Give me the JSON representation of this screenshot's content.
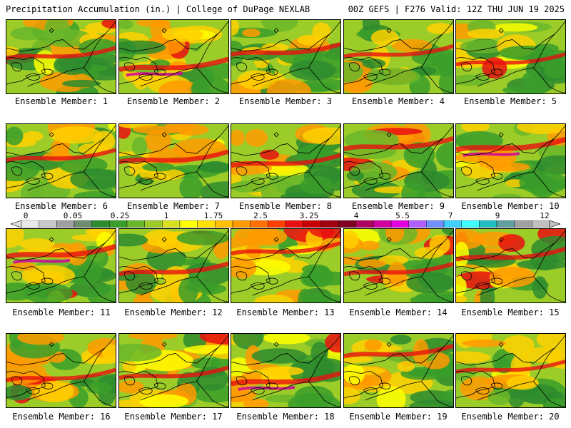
{
  "header": {
    "left": "Precipitation Accumulation (in.) | College of DuPage NEXLAB",
    "right": "00Z GEFS | F276 Valid: 12Z THU JUN 19 2025"
  },
  "members": [
    {
      "label": "Ensemble Member: 1",
      "wet": 0.45
    },
    {
      "label": "Ensemble Member: 2",
      "wet": 0.65
    },
    {
      "label": "Ensemble Member: 3",
      "wet": 0.55
    },
    {
      "label": "Ensemble Member: 4",
      "wet": 0.45
    },
    {
      "label": "Ensemble Member: 5",
      "wet": 0.4
    },
    {
      "label": "Ensemble Member: 6",
      "wet": 0.45
    },
    {
      "label": "Ensemble Member: 7",
      "wet": 0.6
    },
    {
      "label": "Ensemble Member: 8",
      "wet": 0.55
    },
    {
      "label": "Ensemble Member: 9",
      "wet": 0.6
    },
    {
      "label": "Ensemble Member: 10",
      "wet": 0.75
    },
    {
      "label": "Ensemble Member: 11",
      "wet": 0.7
    },
    {
      "label": "Ensemble Member: 12",
      "wet": 0.55
    },
    {
      "label": "Ensemble Member: 13",
      "wet": 0.45
    },
    {
      "label": "Ensemble Member: 14",
      "wet": 0.5
    },
    {
      "label": "Ensemble Member: 15",
      "wet": 0.55
    },
    {
      "label": "Ensemble Member: 16",
      "wet": 0.45
    },
    {
      "label": "Ensemble Member: 17",
      "wet": 0.5
    },
    {
      "label": "Ensemble Member: 18",
      "wet": 0.65
    },
    {
      "label": "Ensemble Member: 19",
      "wet": 0.55
    },
    {
      "label": "Ensemble Member: 20",
      "wet": 0.4
    }
  ],
  "colorbar": {
    "labels": [
      "0",
      "0.05",
      "0.25",
      "1",
      "1.75",
      "2.5",
      "3.25",
      "4",
      "5.5",
      "7",
      "9",
      "12"
    ],
    "colors": [
      "#e8e8e8",
      "#c8c8c8",
      "#a0a0a0",
      "#6e8c6e",
      "#2e8b2e",
      "#3a9e2a",
      "#6ab62a",
      "#9ccc28",
      "#d8e020",
      "#ffff00",
      "#ffe000",
      "#ffc000",
      "#ff9a00",
      "#ff7000",
      "#ff4000",
      "#e81010",
      "#c80000",
      "#a00010",
      "#800020",
      "#b00060",
      "#d000a0",
      "#e000e0",
      "#b060ff",
      "#7090ff",
      "#40d0ff",
      "#40ffff",
      "#20c0c0",
      "#60a0a0",
      "#a0a0a0",
      "#c0c0c0"
    ]
  }
}
